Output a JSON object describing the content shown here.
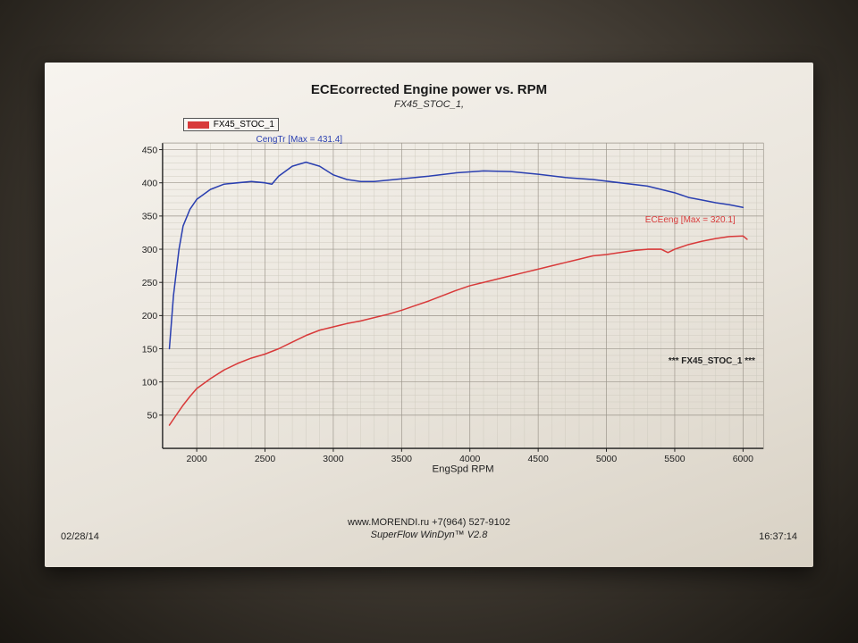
{
  "title": "ECEcorrected Engine power vs. RPM",
  "subtitle": "FX45_STOC_1,",
  "legend": {
    "swatch_color": "#d83a3a",
    "label": "FX45_STOC_1"
  },
  "series_label_blue": "CengTr [Max = 431.4]",
  "series_label_red": "ECEeng [Max = 320.1]",
  "side_note": "*** FX45_STOC_1 ***",
  "xlabel": "EngSpd  RPM",
  "footer_line1": "www.MORENDI.ru    +7(964) 527-9102",
  "footer_line2": "SuperFlow WinDyn™ V2.8",
  "footer_date": "02/28/14",
  "footer_time": "16:37:14",
  "chart": {
    "type": "line",
    "xlim": [
      1750,
      6150
    ],
    "ylim": [
      0,
      460
    ],
    "xtick_start": 2000,
    "xtick_step": 500,
    "xtick_end": 6000,
    "ytick_start": 50,
    "ytick_step": 50,
    "ytick_end": 450,
    "minor_x_div": 5,
    "minor_y_div": 5,
    "axis_color": "#1a1a1a",
    "major_grid_color": "#9a948a",
    "minor_grid_color": "#cfcabf",
    "background_color": "transparent",
    "line_width": 1.6,
    "series": [
      {
        "name": "CengTr",
        "color": "#2a3fb0",
        "points": [
          [
            1800,
            150
          ],
          [
            1830,
            230
          ],
          [
            1870,
            300
          ],
          [
            1900,
            335
          ],
          [
            1950,
            360
          ],
          [
            2000,
            375
          ],
          [
            2100,
            390
          ],
          [
            2200,
            398
          ],
          [
            2300,
            400
          ],
          [
            2400,
            402
          ],
          [
            2500,
            400
          ],
          [
            2550,
            398
          ],
          [
            2600,
            410
          ],
          [
            2700,
            425
          ],
          [
            2800,
            431
          ],
          [
            2900,
            425
          ],
          [
            3000,
            412
          ],
          [
            3100,
            405
          ],
          [
            3200,
            402
          ],
          [
            3300,
            402
          ],
          [
            3400,
            404
          ],
          [
            3500,
            406
          ],
          [
            3700,
            410
          ],
          [
            3900,
            415
          ],
          [
            4100,
            418
          ],
          [
            4300,
            417
          ],
          [
            4500,
            413
          ],
          [
            4700,
            408
          ],
          [
            4900,
            405
          ],
          [
            5100,
            400
          ],
          [
            5300,
            395
          ],
          [
            5500,
            385
          ],
          [
            5600,
            378
          ],
          [
            5700,
            374
          ],
          [
            5800,
            370
          ],
          [
            5900,
            367
          ],
          [
            6000,
            363
          ]
        ]
      },
      {
        "name": "ECEeng",
        "color": "#d83a3a",
        "points": [
          [
            1800,
            35
          ],
          [
            1850,
            50
          ],
          [
            1900,
            65
          ],
          [
            1950,
            78
          ],
          [
            2000,
            90
          ],
          [
            2100,
            105
          ],
          [
            2200,
            118
          ],
          [
            2300,
            128
          ],
          [
            2400,
            136
          ],
          [
            2500,
            142
          ],
          [
            2600,
            150
          ],
          [
            2700,
            160
          ],
          [
            2800,
            170
          ],
          [
            2900,
            178
          ],
          [
            3000,
            183
          ],
          [
            3100,
            188
          ],
          [
            3200,
            192
          ],
          [
            3300,
            197
          ],
          [
            3400,
            202
          ],
          [
            3500,
            208
          ],
          [
            3600,
            215
          ],
          [
            3700,
            222
          ],
          [
            3800,
            230
          ],
          [
            3900,
            238
          ],
          [
            4000,
            245
          ],
          [
            4100,
            250
          ],
          [
            4200,
            255
          ],
          [
            4300,
            260
          ],
          [
            4400,
            265
          ],
          [
            4500,
            270
          ],
          [
            4600,
            275
          ],
          [
            4700,
            280
          ],
          [
            4800,
            285
          ],
          [
            4900,
            290
          ],
          [
            5000,
            292
          ],
          [
            5100,
            295
          ],
          [
            5200,
            298
          ],
          [
            5300,
            300
          ],
          [
            5400,
            300
          ],
          [
            5450,
            295
          ],
          [
            5500,
            300
          ],
          [
            5600,
            307
          ],
          [
            5700,
            312
          ],
          [
            5800,
            316
          ],
          [
            5900,
            319
          ],
          [
            6000,
            320
          ],
          [
            6030,
            315
          ]
        ]
      }
    ]
  }
}
